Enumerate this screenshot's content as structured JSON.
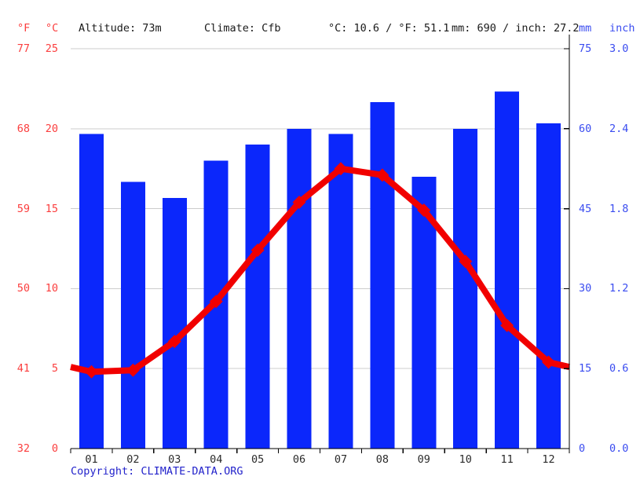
{
  "header": {
    "f_label": "°F",
    "c_label": "°C",
    "altitude": "Altitude: 73m",
    "climate": "Climate: Cfb",
    "temp_summary": "°C: 10.6 / °F: 51.1",
    "precip_summary": "mm: 690 / inch: 27.2",
    "mm_label": "mm",
    "inch_label": "inch"
  },
  "axes": {
    "fahrenheit_ticks": [
      "77",
      "68",
      "59",
      "50",
      "41",
      "32"
    ],
    "celsius_ticks": [
      "25",
      "20",
      "15",
      "10",
      "5",
      "0"
    ],
    "mm_ticks": [
      "75",
      "60",
      "45",
      "30",
      "15",
      "0"
    ],
    "inch_ticks": [
      "3.0",
      "2.4",
      "1.8",
      "1.2",
      "0.6",
      "0.0"
    ]
  },
  "chart_data": {
    "type": "bar+line",
    "categories": [
      "01",
      "02",
      "03",
      "04",
      "05",
      "06",
      "07",
      "08",
      "09",
      "10",
      "11",
      "12"
    ],
    "series": [
      {
        "name": "Precipitation",
        "unit": "mm",
        "type": "bar",
        "values": [
          59,
          50,
          47,
          54,
          57,
          60,
          59,
          65,
          51,
          60,
          67,
          61
        ]
      },
      {
        "name": "Temperature",
        "unit": "°C",
        "type": "line",
        "values": [
          4.8,
          4.9,
          6.7,
          9.2,
          12.4,
          15.4,
          17.5,
          17.1,
          14.9,
          11.7,
          7.7,
          5.4
        ]
      }
    ],
    "ylim_left_celsius": [
      0,
      25
    ],
    "ylim_left_fahrenheit": [
      32,
      77
    ],
    "ylim_right_mm": [
      0,
      75
    ],
    "ylim_right_inch": [
      0,
      3.0
    ],
    "grid": true,
    "legend_position": "none"
  },
  "colors": {
    "bar_blue": "#0b27fb",
    "line_red": "#f10000",
    "left_axis_red": "#fb3e3e",
    "right_axis_blue": "#3a4cf0",
    "grid_gray": "#cccccc",
    "axis_black": "#000000",
    "copyright_blue": "#2323cb"
  },
  "footer": {
    "copyright_label": "Copyright: ",
    "link": "CLIMATE-DATA.ORG"
  }
}
